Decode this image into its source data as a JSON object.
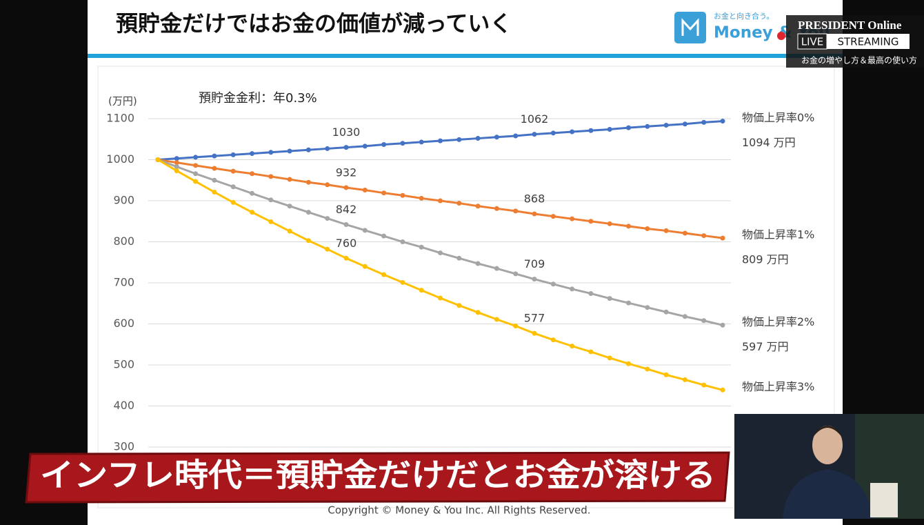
{
  "header": {
    "title": "預貯金だけではお金の価値が減っていく",
    "logo_tagline": "お金と向き合う。",
    "logo": "Money & You"
  },
  "broadcast": {
    "brand": "PRESIDENT Online",
    "live": "LIVE",
    "streaming": "STREAMING",
    "program": "お金の増やし方＆最高の使い方"
  },
  "chart_data": {
    "type": "line",
    "y_label": "(万円)",
    "annotation": "預貯金金利：年0.3%",
    "categories": [
      null,
      null,
      null,
      null,
      null,
      null,
      null,
      null,
      null,
      null,
      null,
      null,
      null,
      null,
      null,
      null,
      null,
      null,
      null,
      null,
      null,
      null,
      null,
      null,
      null,
      null,
      null,
      null,
      null,
      null,
      null
    ],
    "ylim": [
      300,
      1100
    ],
    "yticks": [
      300,
      400,
      500,
      600,
      700,
      800,
      900,
      1000,
      1100
    ],
    "grid": true,
    "series": [
      {
        "name": "物価上昇率0%",
        "color": "#4472c4",
        "values": [
          1000,
          1003,
          1006,
          1009,
          1012,
          1015,
          1018,
          1021,
          1024,
          1027,
          1030,
          1033,
          1037,
          1040,
          1043,
          1046,
          1049,
          1052,
          1055,
          1058,
          1062,
          1065,
          1068,
          1071,
          1074,
          1078,
          1081,
          1084,
          1087,
          1091,
          1094
        ],
        "value_labels": [
          null,
          null,
          null,
          null,
          null,
          null,
          null,
          null,
          null,
          null,
          "1030",
          null,
          null,
          null,
          null,
          null,
          null,
          null,
          null,
          null,
          "1062",
          null,
          null,
          null,
          null,
          null,
          null,
          null,
          null,
          null,
          "1094 万円"
        ]
      },
      {
        "name": "物価上昇率1%",
        "color": "#ed7d31",
        "values": [
          1000,
          993,
          986,
          979,
          972,
          966,
          959,
          952,
          945,
          939,
          932,
          926,
          919,
          913,
          906,
          900,
          894,
          887,
          881,
          875,
          868,
          862,
          856,
          850,
          844,
          838,
          832,
          827,
          821,
          815,
          809
        ],
        "value_labels": [
          null,
          null,
          null,
          null,
          null,
          null,
          null,
          null,
          null,
          null,
          "932",
          null,
          null,
          null,
          null,
          null,
          null,
          null,
          null,
          null,
          "868",
          null,
          null,
          null,
          null,
          null,
          null,
          null,
          null,
          null,
          "809 万円"
        ]
      },
      {
        "name": "物価上昇率2%",
        "color": "#a5a5a5",
        "values": [
          1000,
          983,
          966,
          950,
          934,
          918,
          902,
          887,
          872,
          857,
          842,
          828,
          814,
          800,
          787,
          773,
          760,
          747,
          735,
          722,
          709,
          697,
          685,
          674,
          662,
          651,
          640,
          629,
          618,
          608,
          597
        ],
        "value_labels": [
          null,
          null,
          null,
          null,
          null,
          null,
          null,
          null,
          null,
          null,
          "842",
          null,
          null,
          null,
          null,
          null,
          null,
          null,
          null,
          null,
          "709",
          null,
          null,
          null,
          null,
          null,
          null,
          null,
          null,
          null,
          "597 万円"
        ]
      },
      {
        "name": "物価上昇率3%",
        "color": "#ffc000",
        "values": [
          1000,
          973,
          947,
          921,
          896,
          872,
          849,
          826,
          803,
          782,
          760,
          740,
          720,
          701,
          682,
          663,
          645,
          628,
          611,
          595,
          577,
          561,
          546,
          532,
          517,
          503,
          490,
          476,
          464,
          451,
          439
        ],
        "value_labels": [
          null,
          null,
          null,
          null,
          null,
          null,
          null,
          null,
          null,
          null,
          "760",
          null,
          null,
          null,
          null,
          null,
          null,
          null,
          null,
          null,
          "577",
          null,
          null,
          null,
          null,
          null,
          null,
          null,
          null,
          null,
          null
        ]
      }
    ]
  },
  "caption": "インフレ時代＝預貯金だけだとお金が溶ける",
  "copyright": "Copyright © Money & You Inc. All Rights Reserved."
}
